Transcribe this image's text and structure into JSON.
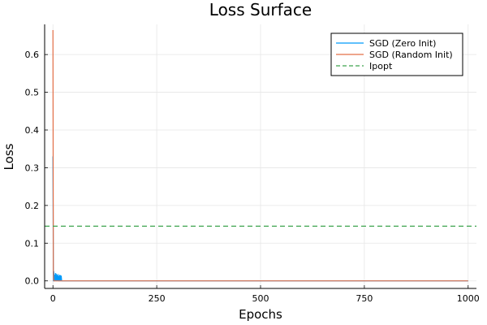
{
  "chart_data": {
    "type": "line",
    "title": "Loss Surface",
    "xlabel": "Epochs",
    "ylabel": "Loss",
    "xlim": [
      -20,
      1020
    ],
    "ylim": [
      -0.02,
      0.68
    ],
    "xticks": [
      0,
      250,
      500,
      750,
      1000
    ],
    "xtick_labels": [
      "0",
      "250",
      "500",
      "750",
      "1000"
    ],
    "yticks": [
      0.0,
      0.1,
      0.2,
      0.3,
      0.4,
      0.5,
      0.6
    ],
    "ytick_labels": [
      "0.0",
      "0.1",
      "0.2",
      "0.3",
      "0.4",
      "0.5",
      "0.6"
    ],
    "grid": true,
    "legend_position": "top-right",
    "series": [
      {
        "name": "SGD (Zero Init)",
        "color": "#009AFA",
        "style": "solid",
        "x": [
          0,
          1,
          2,
          3,
          4,
          5,
          6,
          7,
          8,
          9,
          10,
          11,
          12,
          13,
          14,
          15,
          16,
          17,
          18,
          19,
          20,
          21,
          1000
        ],
        "y": [
          0.33,
          0.0,
          0.025,
          0.0,
          0.015,
          0.0,
          0.02,
          0.002,
          0.018,
          0.0,
          0.014,
          0.001,
          0.017,
          0.0,
          0.012,
          0.0,
          0.015,
          0.0,
          0.014,
          0.0,
          0.013,
          0.0,
          0.0
        ]
      },
      {
        "name": "SGD (Random Init)",
        "color": "#E36F47",
        "style": "solid",
        "x": [
          0,
          1,
          2,
          3,
          1000
        ],
        "y": [
          0.665,
          0.02,
          0.0,
          0.0,
          0.0
        ]
      },
      {
        "name": "Ipopt",
        "color": "#3EA44E",
        "style": "dashed",
        "x": [
          -20,
          1020
        ],
        "y": [
          0.145,
          0.145
        ]
      }
    ]
  }
}
